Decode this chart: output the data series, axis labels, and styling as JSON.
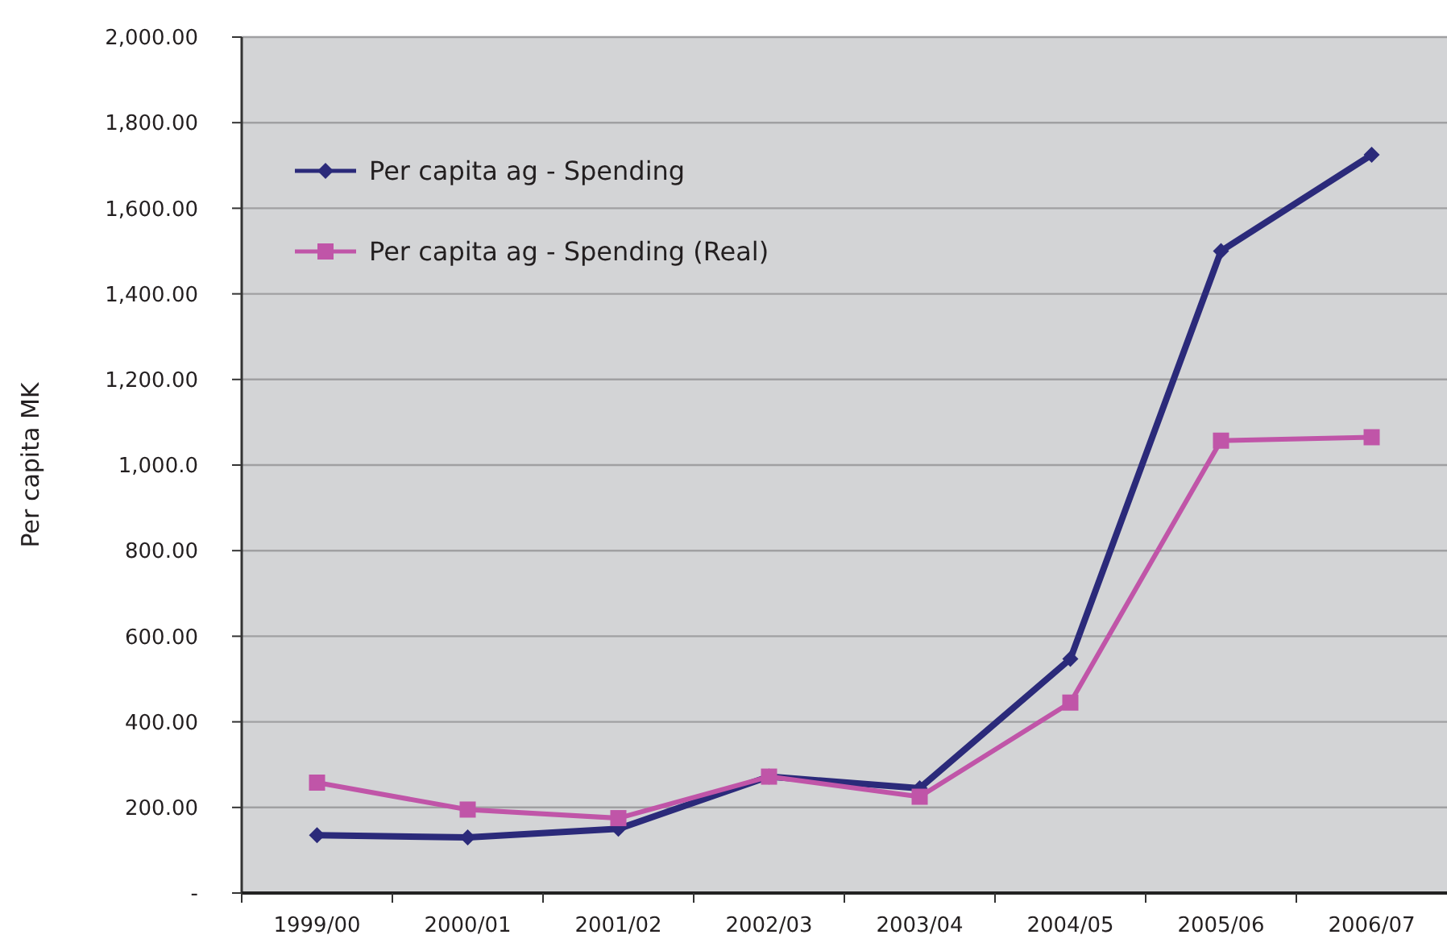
{
  "chart_data": {
    "type": "line",
    "ylabel": "Per capita MK",
    "categories": [
      "1999/00",
      "2000/01",
      "2001/02",
      "2002/03",
      "2003/04",
      "2004/05",
      "2005/06",
      "2006/07"
    ],
    "series": [
      {
        "name": "Per capita ag - Spending",
        "color": "#2b2a7a",
        "marker": "diamond",
        "values": [
          135,
          130,
          150,
          272,
          245,
          547,
          1500,
          1725
        ]
      },
      {
        "name": "Per capita ag - Spending (Real)",
        "color": "#c055a8",
        "marker": "square",
        "values": [
          258,
          195,
          175,
          272,
          225,
          445,
          1057,
          1065
        ]
      }
    ],
    "ylim": [
      0,
      2000
    ],
    "yticks": [
      {
        "value": 0,
        "label": "-"
      },
      {
        "value": 200,
        "label": "200.00"
      },
      {
        "value": 400,
        "label": "400.00"
      },
      {
        "value": 600,
        "label": "600.00"
      },
      {
        "value": 800,
        "label": "800.00"
      },
      {
        "value": 1000,
        "label": "1,000.0"
      },
      {
        "value": 1200,
        "label": "1,200.00"
      },
      {
        "value": 1400,
        "label": "1,400.00"
      },
      {
        "value": 1600,
        "label": "1,600.00"
      },
      {
        "value": 1800,
        "label": "1,800.00"
      },
      {
        "value": 2000,
        "label": "2,000.00"
      }
    ],
    "grid": "y",
    "legend": "top left",
    "line_style": "solid"
  }
}
